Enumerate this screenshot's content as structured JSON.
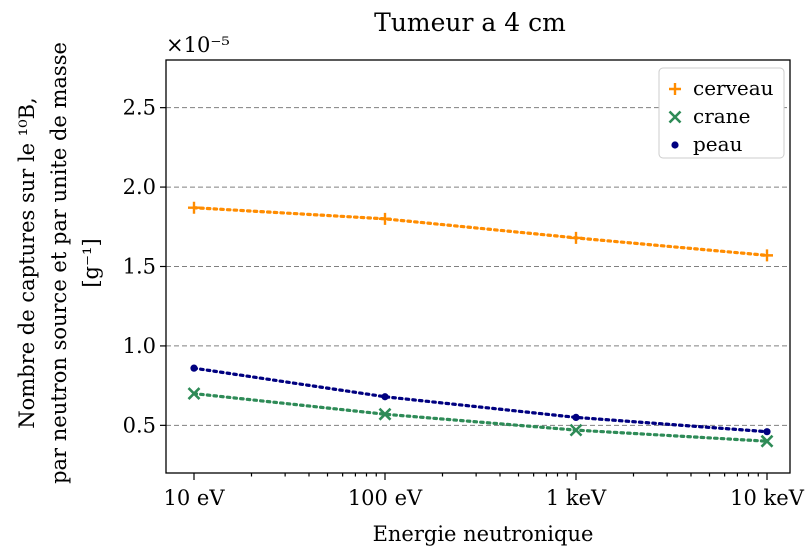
{
  "chart_data": {
    "type": "line",
    "title": "Tumeur a 4 cm",
    "xlabel": "Energie neutronique",
    "ylabel_lines": [
      "Nombre de captures sur le ¹⁰B,",
      "par neutron source et par unite de masse",
      "[g⁻¹]"
    ],
    "y_multiplier": "×10⁻⁵",
    "categories": [
      "10 eV",
      "100 eV",
      "1 keV",
      "10 keV"
    ],
    "x_scale": "log",
    "ylim": [
      0.2,
      2.8
    ],
    "yticks": [
      0.5,
      1.0,
      1.5,
      2.0,
      2.5
    ],
    "ytick_labels": [
      "0.5",
      "1.0",
      "1.5",
      "2.0",
      "2.5"
    ],
    "grid": "horizontal dashed",
    "legend_position": "top-right",
    "series": [
      {
        "name": "cerveau",
        "marker": "plus",
        "color": "#ff8c00",
        "values": [
          1.87,
          1.8,
          1.68,
          1.57
        ]
      },
      {
        "name": "crane",
        "marker": "x",
        "color": "#2e8b57",
        "values": [
          0.7,
          0.57,
          0.47,
          0.4
        ]
      },
      {
        "name": "peau",
        "marker": "dot",
        "color": "#000080",
        "values": [
          0.86,
          0.68,
          0.55,
          0.46
        ]
      }
    ]
  }
}
